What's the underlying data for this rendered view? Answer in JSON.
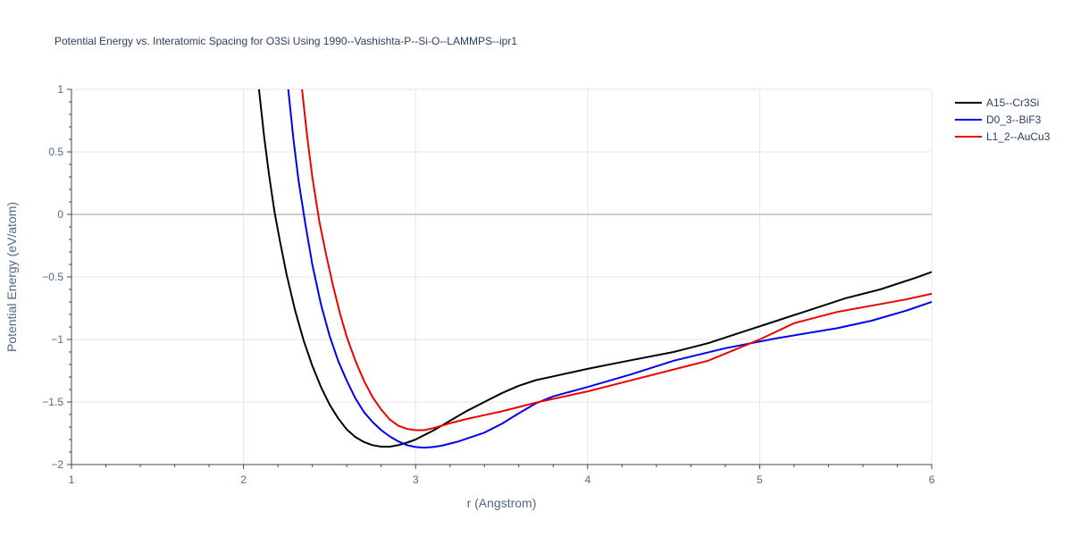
{
  "chart_data": {
    "type": "line",
    "title": "Potential Energy vs. Interatomic Spacing for O3Si Using 1990--Vashishta-P--Si-O--LAMMPS--ipr1",
    "xlabel": "r (Angstrom)",
    "ylabel": "Potential Energy (eV/atom)",
    "xlim": [
      1,
      6
    ],
    "ylim": [
      -2,
      1
    ],
    "xticks": [
      1,
      2,
      3,
      4,
      5,
      6
    ],
    "yticks": [
      1,
      0.5,
      0,
      -0.5,
      -1,
      -1.5,
      -2
    ],
    "xtick_labels": [
      "1",
      "2",
      "3",
      "4",
      "5",
      "6"
    ],
    "ytick_labels": [
      "1",
      "0.5",
      "0",
      "−0.5",
      "−1",
      "−1.5",
      "−2"
    ],
    "grid": true,
    "legend_position": "top-right",
    "series": [
      {
        "name": "A15--Cr3Si",
        "color": "#000000",
        "x": [
          2.09,
          2.12,
          2.15,
          2.18,
          2.21,
          2.25,
          2.3,
          2.35,
          2.4,
          2.45,
          2.5,
          2.55,
          2.6,
          2.65,
          2.7,
          2.75,
          2.8,
          2.85,
          2.9,
          2.95,
          3.0,
          3.1,
          3.2,
          3.3,
          3.4,
          3.5,
          3.6,
          3.7,
          3.8,
          3.9,
          4.0,
          4.2,
          4.5,
          4.7,
          4.9,
          5.1,
          5.3,
          5.5,
          5.7,
          5.9,
          6.0
        ],
        "y": [
          1.0,
          0.62,
          0.3,
          0.02,
          -0.2,
          -0.48,
          -0.77,
          -1.01,
          -1.21,
          -1.38,
          -1.52,
          -1.63,
          -1.72,
          -1.78,
          -1.82,
          -1.845,
          -1.857,
          -1.857,
          -1.845,
          -1.825,
          -1.8,
          -1.73,
          -1.65,
          -1.57,
          -1.5,
          -1.43,
          -1.37,
          -1.325,
          -1.295,
          -1.265,
          -1.235,
          -1.18,
          -1.1,
          -1.03,
          -0.94,
          -0.85,
          -0.76,
          -0.67,
          -0.6,
          -0.51,
          -0.46
        ]
      },
      {
        "name": "D0_3--BiF3",
        "color": "#0000ee",
        "x": [
          2.26,
          2.29,
          2.32,
          2.36,
          2.4,
          2.45,
          2.5,
          2.55,
          2.6,
          2.65,
          2.7,
          2.75,
          2.8,
          2.85,
          2.9,
          2.95,
          3.0,
          3.05,
          3.1,
          3.15,
          3.25,
          3.4,
          3.5,
          3.6,
          3.7,
          3.8,
          4.0,
          4.25,
          4.5,
          4.8,
          5.1,
          5.45,
          5.65,
          5.85,
          6.0
        ],
        "y": [
          1.0,
          0.6,
          0.27,
          -0.08,
          -0.4,
          -0.72,
          -0.97,
          -1.17,
          -1.33,
          -1.47,
          -1.58,
          -1.66,
          -1.725,
          -1.775,
          -1.815,
          -1.845,
          -1.86,
          -1.865,
          -1.86,
          -1.85,
          -1.815,
          -1.745,
          -1.675,
          -1.59,
          -1.51,
          -1.455,
          -1.38,
          -1.28,
          -1.17,
          -1.07,
          -0.99,
          -0.91,
          -0.85,
          -0.77,
          -0.7
        ]
      },
      {
        "name": "L1_2--AuCu3",
        "color": "#ee0000",
        "x": [
          2.34,
          2.37,
          2.4,
          2.44,
          2.48,
          2.52,
          2.56,
          2.6,
          2.65,
          2.7,
          2.75,
          2.8,
          2.85,
          2.9,
          2.95,
          3.0,
          3.05,
          3.1,
          3.2,
          3.3,
          3.4,
          3.5,
          3.6,
          3.7,
          3.8,
          4.0,
          4.2,
          4.5,
          4.7,
          5.0,
          5.2,
          5.45,
          5.65,
          5.85,
          6.0
        ],
        "y": [
          1.0,
          0.62,
          0.3,
          -0.05,
          -0.32,
          -0.57,
          -0.79,
          -0.98,
          -1.17,
          -1.33,
          -1.46,
          -1.56,
          -1.64,
          -1.69,
          -1.715,
          -1.725,
          -1.725,
          -1.71,
          -1.67,
          -1.635,
          -1.605,
          -1.575,
          -1.54,
          -1.505,
          -1.475,
          -1.415,
          -1.345,
          -1.24,
          -1.17,
          -1.0,
          -0.87,
          -0.78,
          -0.73,
          -0.68,
          -0.635
        ]
      }
    ]
  }
}
